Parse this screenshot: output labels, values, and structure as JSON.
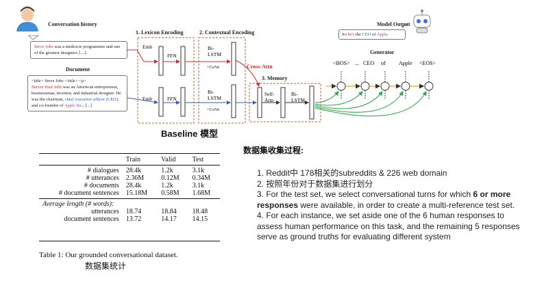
{
  "diagram": {
    "conversation_history": {
      "title": "Conversation history",
      "text_highlight": "Steve Jobs",
      "text_rest": " was a mediocre programmer and one of the greatest designers [....]."
    },
    "document": {
      "title": "Document",
      "line1": "<title> Steve Jobs </title> <p>",
      "name": "Steven Paul Jobs",
      "rest1": " was an American entrepreneur, businessman, inventor, and industrial designer. He was the chairman, ",
      "ceo": "chief executive officer (CEO)",
      "rest2": ", and co-founder of ",
      "apple": "Apple Inc.",
      "rest3": "; [...]"
    },
    "stage1": "1. Lexicon Encoding",
    "stage2": "2. Contextual Encoding",
    "stage3": "3. Memory",
    "emb": "Emb",
    "ffn": "FFN",
    "bilstm_1": "Bi-",
    "bilstm_2": "LSTM",
    "cove": "+CoVe",
    "selfattn_1": "Self-",
    "selfattn_2": "Attn",
    "cross_attn": "Cross-Attn",
    "model_output": {
      "title": "Model Output",
      "pre": "So ",
      "he": "he's",
      "mid": " the ",
      "ceo": "CEO",
      "of": " of ",
      "apple": "Apple",
      "end": "."
    },
    "generator": {
      "title": "Generator",
      "tokens": [
        "<BOS>",
        "...",
        "CEO",
        "of",
        "Apple",
        "<EOS>"
      ]
    },
    "caption": "Baseline 模型"
  },
  "table": {
    "headers": [
      "",
      "Train",
      "Valid",
      "Test"
    ],
    "rows": [
      [
        "# dialogues",
        "28.4k",
        "1.2k",
        "3.1k"
      ],
      [
        "# utterances",
        "2.36M",
        "0.12M",
        "0.34M"
      ],
      [
        "# documents",
        "28.4k",
        "1.2k",
        "3.1k"
      ],
      [
        "# document sentences",
        "15.18M",
        "0.58M",
        "1.68M"
      ]
    ],
    "avg_label": "Average length (# words):",
    "avg_rows": [
      [
        "utterances",
        "18.74",
        "18.84",
        "18.48"
      ],
      [
        "document sentences",
        "13.72",
        "14.17",
        "14.15"
      ]
    ],
    "caption": "Table 1: Our grounded conversational dataset.",
    "caption_cn": "数据集统计"
  },
  "notes": {
    "heading": "数据集收集过程:",
    "item1": "1.  Reddit中 178相关的subreddits & 226 web domain",
    "item2": "2. 按照年份对于数据集进行划分",
    "item3_pre": "3. For the test set, we select conversational turns for which ",
    "item3_bold": "6 or more responses",
    "item3_post": " were available, in order to create a multi-reference test set.",
    "item4": "4. For each instance, we set aside one of the 6 human responses to assess human performance on this task, and the remaining 5 responses serve as ground truths for evaluating different system"
  }
}
